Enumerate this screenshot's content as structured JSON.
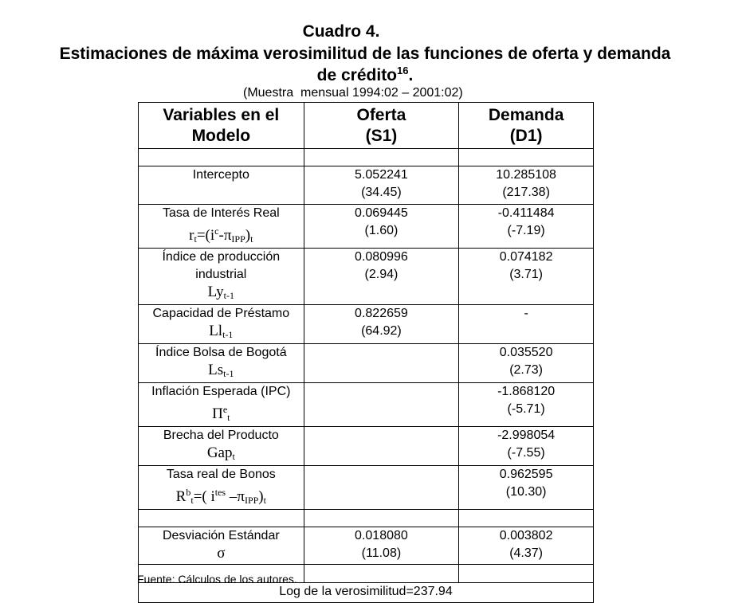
{
  "title": {
    "line1": "Cuadro 4.",
    "line2": "Estimaciones de máxima verosimilitud de las funciones de oferta y demanda",
    "line3": "de crédito",
    "footnote": "16",
    "line3_end": ".",
    "sample": "(Muestra  mensual 1994:02 – 2001:02)"
  },
  "table": {
    "headers": [
      [
        "Variables en el",
        "Modelo"
      ],
      [
        "Oferta",
        "(S1)"
      ],
      [
        "Demanda",
        "(D1)"
      ]
    ],
    "rows": [
      {
        "blank": true
      },
      {
        "label": [
          "Intercepto"
        ],
        "formula": [],
        "s1": [
          "5.052241",
          "(34.45)"
        ],
        "d1": [
          "10.285108",
          "(217.38)"
        ]
      },
      {
        "label": [
          "Tasa de Interés Real"
        ],
        "formula": [
          [
            "t",
            "r"
          ],
          [
            "sub",
            "t"
          ],
          [
            "t",
            "=(i"
          ],
          [
            "sup",
            "c"
          ],
          [
            "t",
            "-π"
          ],
          [
            "sub",
            "IPP"
          ],
          [
            "t",
            ")"
          ],
          [
            "sub",
            "t"
          ]
        ],
        "s1": [
          "0.069445",
          "(1.60)"
        ],
        "d1": [
          "-0.411484",
          "(-7.19)"
        ]
      },
      {
        "label": [
          "Índice de producción",
          "industrial"
        ],
        "formula": [
          [
            "t",
            "Ly"
          ],
          [
            "sub",
            "t-1"
          ]
        ],
        "s1": [
          "0.080996",
          "(2.94)"
        ],
        "d1": [
          "0.074182",
          "(3.71)"
        ]
      },
      {
        "label": [
          "Capacidad de Préstamo"
        ],
        "formula": [
          [
            "t",
            "Ll"
          ],
          [
            "sub",
            "t-1"
          ]
        ],
        "s1": [
          "0.822659",
          "(64.92)"
        ],
        "d1": [
          "-"
        ]
      },
      {
        "label": [
          "Índice Bolsa de Bogotá"
        ],
        "formula": [
          [
            "t",
            "Ls"
          ],
          [
            "sub",
            "t-1"
          ]
        ],
        "s1": [],
        "d1": [
          "0.035520",
          "(2.73)"
        ]
      },
      {
        "label": [
          "Inflación Esperada (IPC)"
        ],
        "formula": [
          [
            "t",
            "Π"
          ],
          [
            "sup",
            "e"
          ],
          [
            "sub",
            "t"
          ]
        ],
        "s1": [],
        "d1": [
          "-1.868120",
          "(-5.71)"
        ]
      },
      {
        "label": [
          "Brecha del Producto"
        ],
        "formula": [
          [
            "t",
            "Gap"
          ],
          [
            "sub",
            "t"
          ]
        ],
        "s1": [],
        "d1": [
          "-2.998054",
          "(-7.55)"
        ]
      },
      {
        "label": [
          "Tasa real de Bonos"
        ],
        "formula": [
          [
            "t",
            "R"
          ],
          [
            "sup",
            "b"
          ],
          [
            "sub",
            "t"
          ],
          [
            "t",
            "=( i"
          ],
          [
            "sup",
            "tes"
          ],
          [
            "t",
            " –π"
          ],
          [
            "sub",
            "IPP"
          ],
          [
            "t",
            ")"
          ],
          [
            "sub",
            "t"
          ]
        ],
        "s1": [],
        "d1": [
          "0.962595",
          "(10.30)"
        ]
      },
      {
        "blank": true
      },
      {
        "label": [
          "Desviación Estándar"
        ],
        "formula": [
          [
            "t",
            "σ"
          ]
        ],
        "s1": [
          "0.018080",
          "(11.08)"
        ],
        "d1": [
          "0.003802",
          "(4.37)"
        ]
      },
      {
        "blank": true
      }
    ],
    "loglik": "Log de la verosimilitud=237.94"
  },
  "source": "Fuente: Cálculos de los autores."
}
